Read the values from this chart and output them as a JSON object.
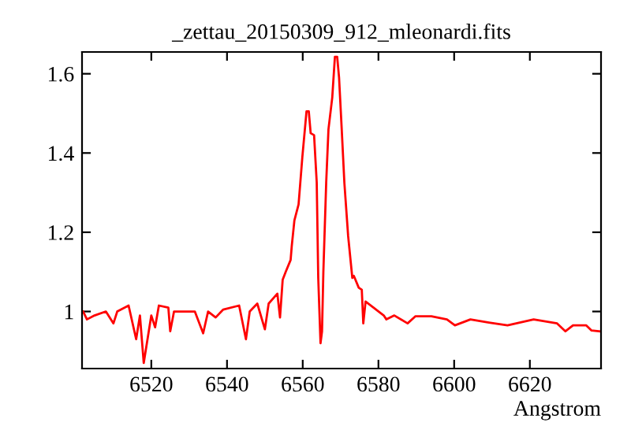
{
  "chart_data": {
    "type": "line",
    "title": "_zettau_20150309_912_mleonardi.fits",
    "xlabel": "Angstrom",
    "xlim": [
      6501.7,
      6638.8
    ],
    "ylim": [
      0.856,
      1.655
    ],
    "xticks": [
      6520,
      6540,
      6560,
      6580,
      6600,
      6620
    ],
    "yticks": [
      {
        "value": 1,
        "label": "1"
      },
      1.2,
      1.4,
      1.6
    ],
    "grid": false,
    "series": [
      {
        "color": "#ff0000",
        "x": [
          6502,
          6503,
          6505,
          6508,
          6510,
          6511,
          6514,
          6516,
          6517,
          6518,
          6520,
          6521,
          6522,
          6524.5,
          6525,
          6526,
          6531.5,
          6533.7,
          6535,
          6537,
          6539,
          6543.2,
          6545,
          6546,
          6548,
          6550,
          6551,
          6553.3,
          6554,
          6554.7,
          6555.5,
          6556.8,
          6557.1,
          6557.8,
          6558.9,
          6559.9,
          6561,
          6561.6,
          6562.1,
          6563,
          6563.7,
          6564.1,
          6564.7,
          6565.1,
          6565.45,
          6566.2,
          6566.8,
          6567.8,
          6568.5,
          6569.1,
          6569.6,
          6570.3,
          6571,
          6572,
          6573.1,
          6573.5,
          6574.8,
          6575.6,
          6576,
          6576.6,
          6578.7,
          6581.4,
          6582.1,
          6584.2,
          6587.7,
          6589.8,
          6594,
          6598.1,
          6600.2,
          6604.3,
          6609.2,
          6614.1,
          6621,
          6627.2,
          6629.4,
          6631.4,
          6634.9,
          6636.3,
          6638.4
        ],
        "values": [
          1.0,
          0.98,
          0.99,
          1.0,
          0.97,
          1.0,
          1.015,
          0.93,
          0.99,
          0.87,
          0.99,
          0.96,
          1.015,
          1.01,
          0.95,
          1.0,
          1.0,
          0.945,
          1.0,
          0.985,
          1.005,
          1.015,
          0.93,
          1.0,
          1.02,
          0.955,
          1.02,
          1.045,
          0.985,
          1.08,
          1.1,
          1.13,
          1.165,
          1.23,
          1.27,
          1.39,
          1.505,
          1.505,
          1.45,
          1.445,
          1.325,
          1.085,
          0.92,
          0.95,
          1.1,
          1.325,
          1.46,
          1.54,
          1.643,
          1.643,
          1.59,
          1.46,
          1.325,
          1.19,
          1.085,
          1.09,
          1.06,
          1.055,
          0.97,
          1.025,
          1.01,
          0.99,
          0.98,
          0.99,
          0.97,
          0.988,
          0.988,
          0.98,
          0.965,
          0.98,
          0.972,
          0.965,
          0.98,
          0.97,
          0.95,
          0.965,
          0.965,
          0.952,
          0.95
        ]
      }
    ]
  }
}
